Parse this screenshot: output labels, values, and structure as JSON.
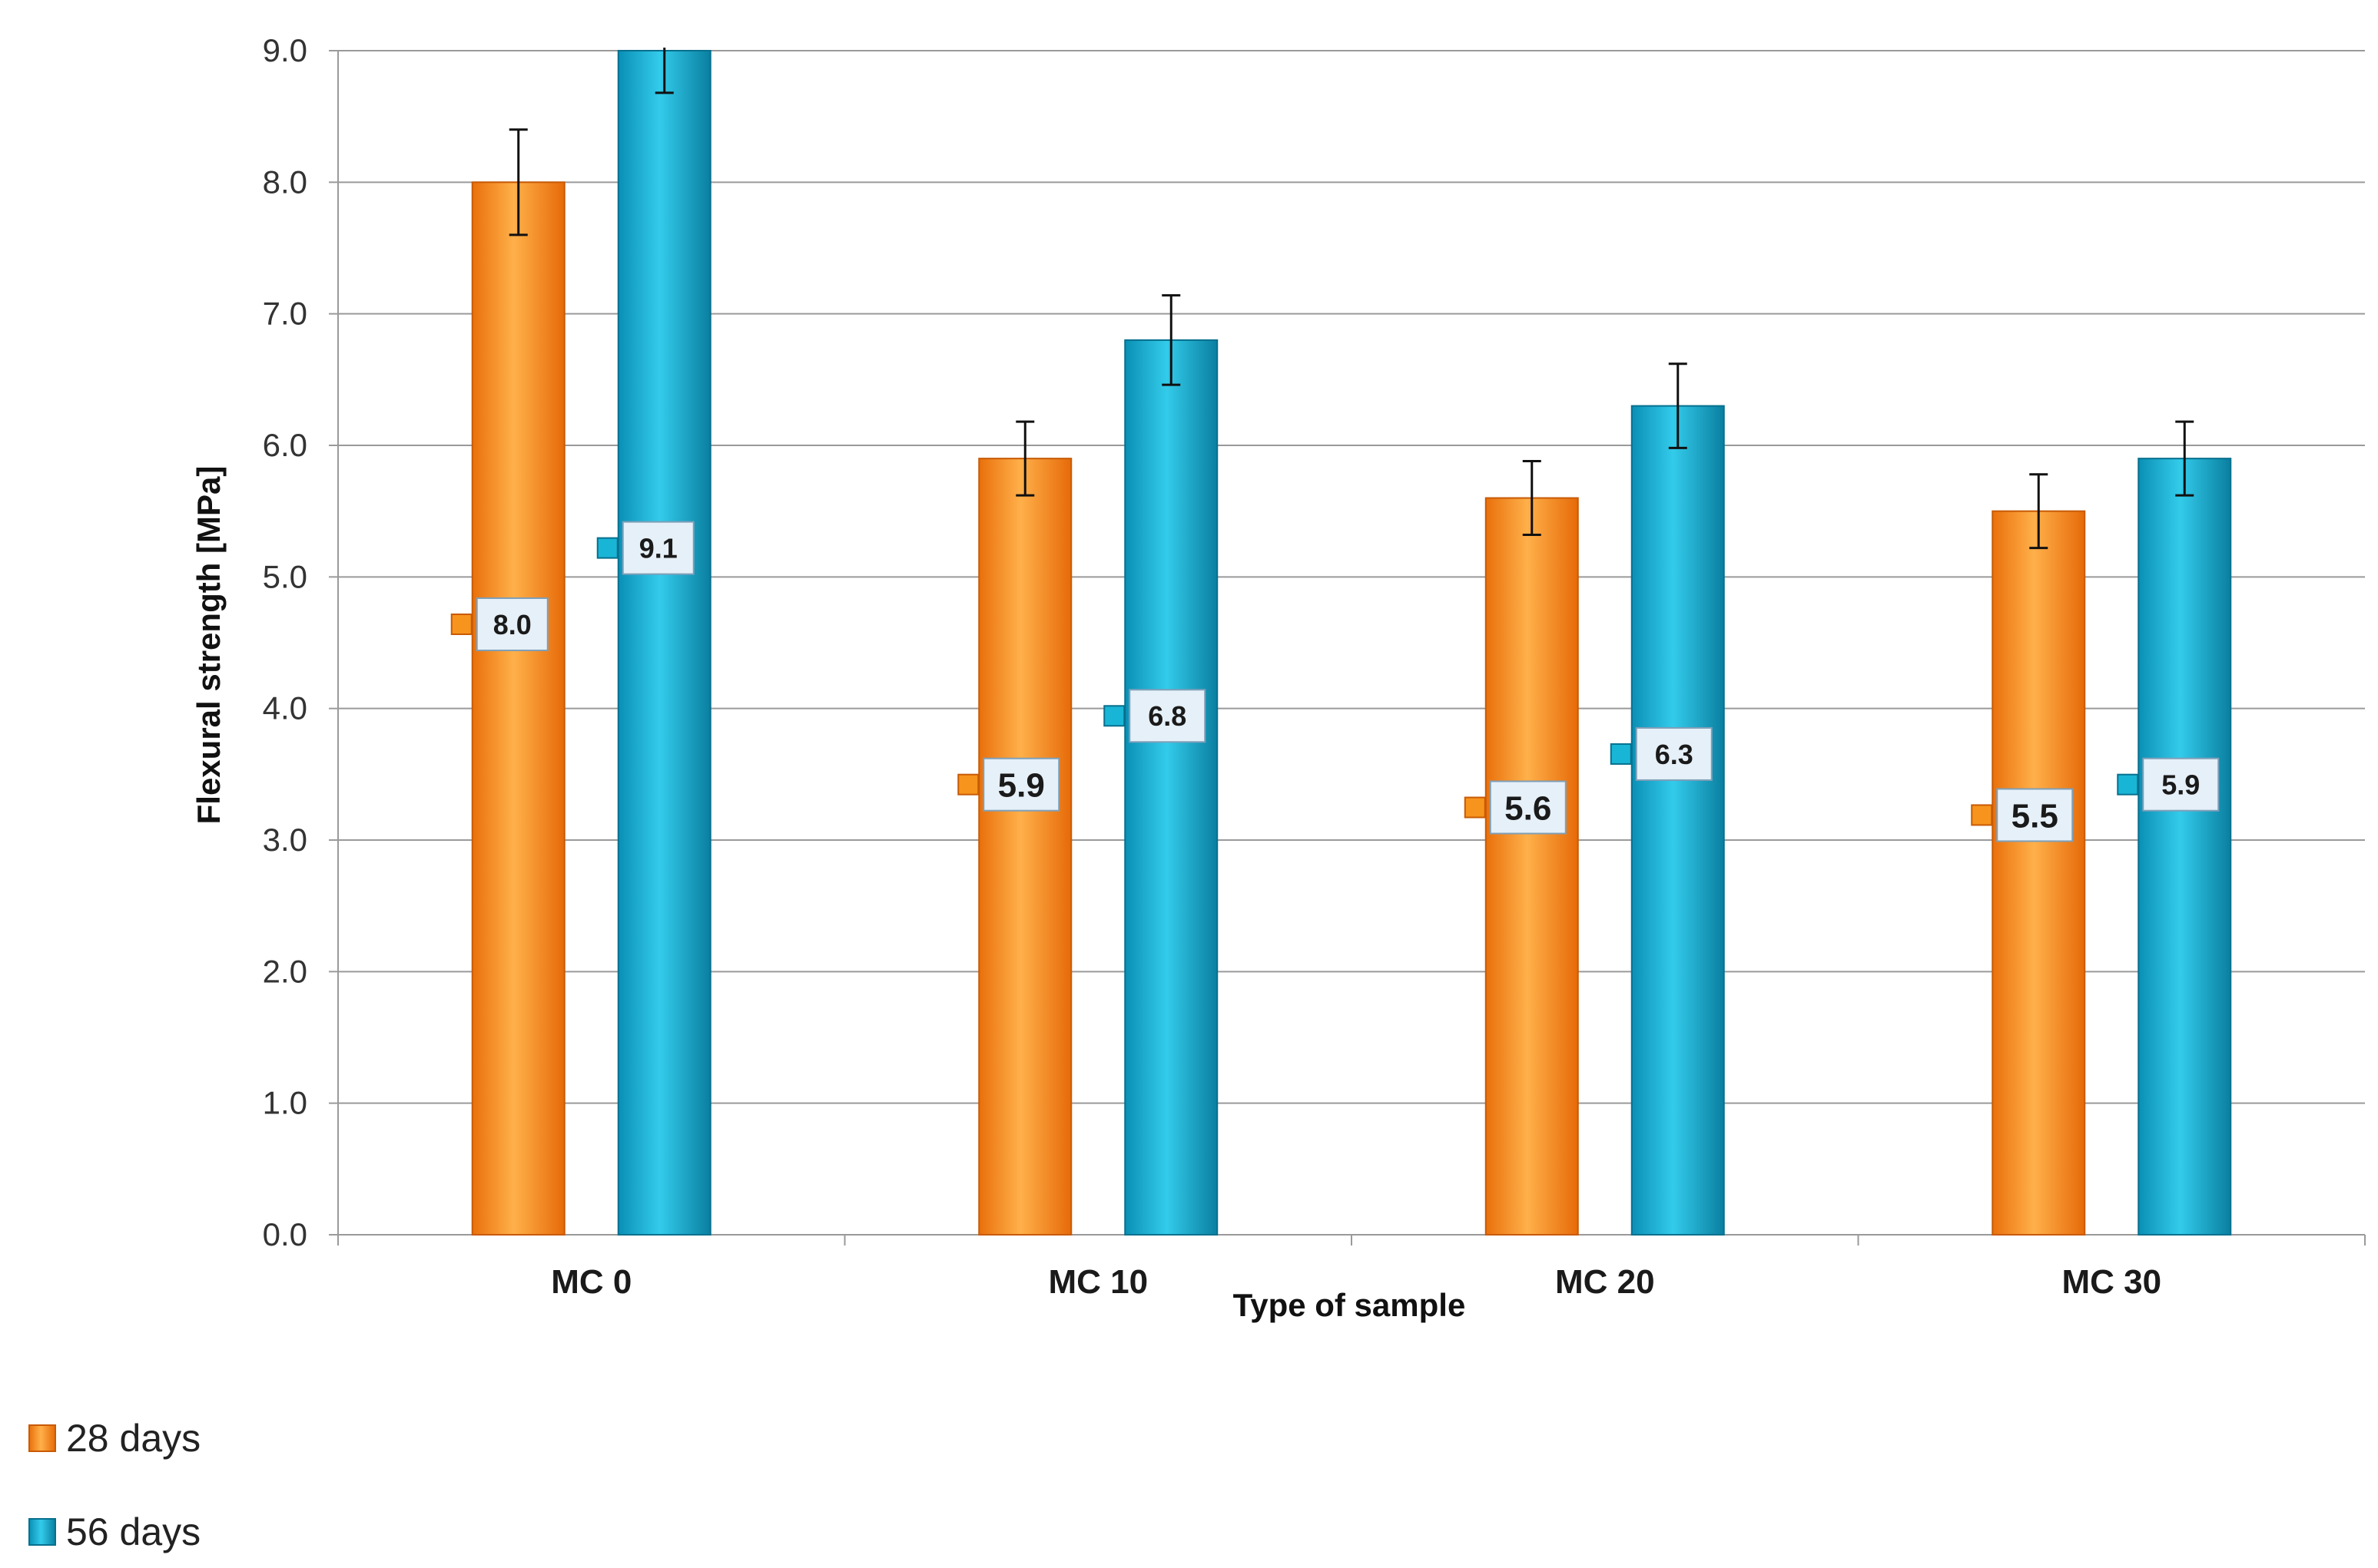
{
  "chart_data": {
    "type": "bar",
    "title": "",
    "xlabel": "Type of sample",
    "ylabel": "Flexural strength [MPa]",
    "ylim": [
      0,
      9
    ],
    "yticks": [
      "0.0",
      "1.0",
      "2.0",
      "3.0",
      "4.0",
      "5.0",
      "6.0",
      "7.0",
      "8.0",
      "9.0"
    ],
    "grid": true,
    "legend_position": "bottom-left",
    "categories": [
      "MC 0",
      "MC 10",
      "MC 20",
      "MC 30"
    ],
    "series": [
      {
        "name": "28 days",
        "color": "#F7941D",
        "values": [
          8.0,
          5.9,
          5.6,
          5.5
        ],
        "labels": [
          "8.0",
          "5.9",
          "5.6",
          "5.5"
        ],
        "error": [
          0.4,
          0.28,
          0.28,
          0.28
        ]
      },
      {
        "name": "56 days",
        "color": "#19B5D6",
        "values": [
          9.1,
          6.8,
          6.3,
          5.9
        ],
        "labels": [
          "9.1",
          "6.8",
          "6.3",
          "5.9"
        ],
        "error": [
          0.42,
          0.34,
          0.32,
          0.28
        ]
      }
    ]
  }
}
